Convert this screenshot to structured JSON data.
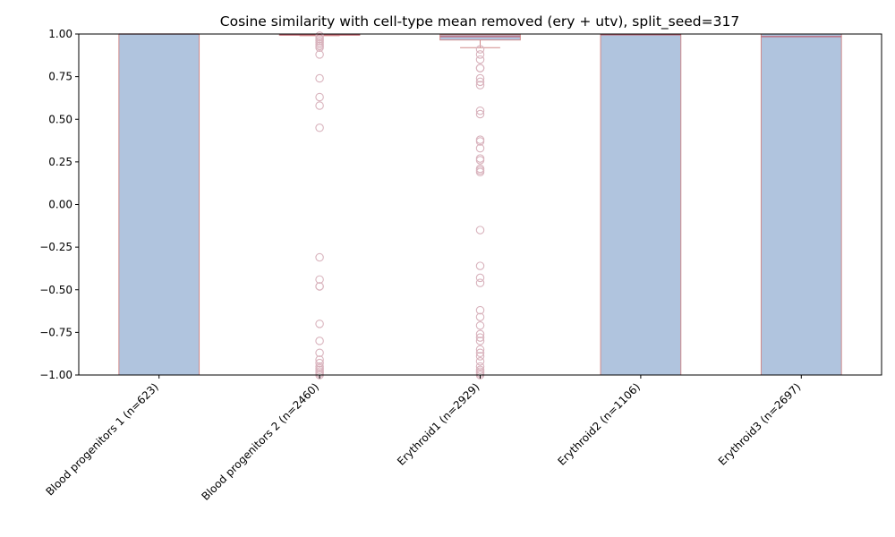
{
  "chart_data": {
    "type": "box",
    "title": "Cosine similarity with cell-type mean removed (ery + utv), split_seed=317",
    "xlabel": "",
    "ylabel": "",
    "ylim": [
      -1.0,
      1.0
    ],
    "yticks": [
      "1.00",
      "0.75",
      "0.50",
      "0.25",
      "0.00",
      "−0.25",
      "−0.50",
      "−0.75",
      "−1.00"
    ],
    "ytick_values": [
      1.0,
      0.75,
      0.5,
      0.25,
      0.0,
      -0.25,
      -0.5,
      -0.75,
      -1.0
    ],
    "grid": false,
    "legend": "none",
    "colors": {
      "box_fill": "#b0c4de",
      "box_edge": "#d08a8a",
      "flier": "#d9b3bd",
      "median": "#c06070"
    },
    "categories": [
      "Blood progenitors 1 (n=623)",
      "Blood progenitors 2 (n=2460)",
      "Erythroid1 (n=2929)",
      "Erythroid2 (n=1106)",
      "Erythroid3 (n=2697)"
    ],
    "boxes": [
      {
        "whisker_low": -1.0,
        "q1": -1.0,
        "median": 1.0,
        "q3": 1.0,
        "whisker_high": 1.0,
        "fliers": []
      },
      {
        "whisker_low": 0.99,
        "q1": 0.993,
        "median": 0.996,
        "q3": 0.998,
        "whisker_high": 1.0,
        "fliers": [
          0.99,
          0.98,
          0.97,
          0.96,
          0.95,
          0.94,
          0.93,
          0.92,
          0.88,
          0.74,
          0.63,
          0.58,
          0.45,
          -0.31,
          -0.44,
          -0.48,
          -0.48,
          -0.7,
          -0.8,
          -0.87,
          -0.91,
          -0.93,
          -0.95,
          -0.96,
          -0.97,
          -0.98,
          -0.99,
          -1.0
        ]
      },
      {
        "whisker_low": 0.92,
        "q1": 0.965,
        "median": 0.985,
        "q3": 0.995,
        "whisker_high": 1.0,
        "fliers": [
          0.91,
          0.88,
          0.85,
          0.8,
          0.8,
          0.74,
          0.72,
          0.7,
          0.55,
          0.53,
          0.38,
          0.37,
          0.33,
          0.27,
          0.26,
          0.21,
          0.2,
          0.19,
          -0.15,
          -0.36,
          -0.43,
          -0.46,
          -0.62,
          -0.66,
          -0.71,
          -0.76,
          -0.78,
          -0.8,
          -0.85,
          -0.87,
          -0.89,
          -0.92,
          -0.95,
          -0.97,
          -0.98,
          -0.99,
          -1.0
        ]
      },
      {
        "whisker_low": -1.0,
        "q1": -1.0,
        "median": 0.995,
        "q3": 1.0,
        "whisker_high": 1.0,
        "fliers": []
      },
      {
        "whisker_low": -1.0,
        "q1": -1.0,
        "median": 0.985,
        "q3": 1.0,
        "whisker_high": 1.0,
        "fliers": []
      }
    ]
  }
}
